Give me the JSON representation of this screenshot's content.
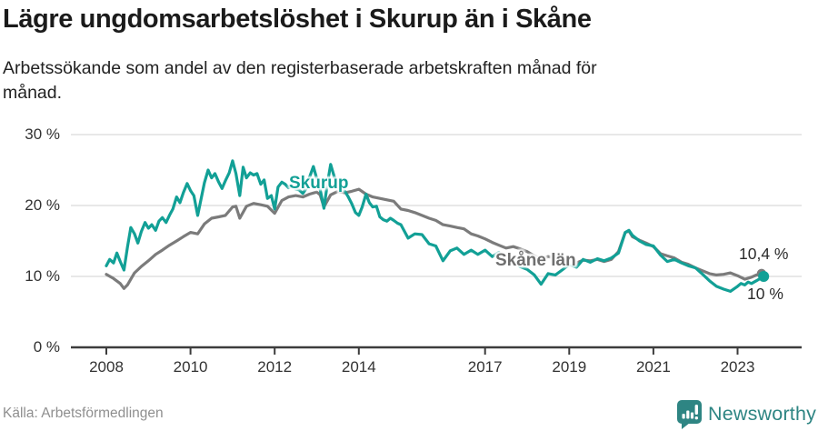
{
  "header": {
    "title": "Lägre ungdomsarbetslöshet i Skurup än i Skåne",
    "subtitle": "Arbetssökande som andel av den registerbaserade arbetskraften månad för månad.",
    "subtitle_lines": [
      "Arbetssökande som andel av den registerbaserade arbetskraften månad för",
      "månad."
    ]
  },
  "footer": {
    "source": "Källa: Arbetsförmedlingen",
    "brand": "Newsworthy"
  },
  "colors": {
    "skurup": "#12a096",
    "skane": "#7b7b7b",
    "grid": "#d9d9d9",
    "axis": "#3c3c3c",
    "annotation": "#2b2b2b",
    "logo_teal": "#2e8583"
  },
  "chart_data": {
    "type": "line",
    "title": "Lägre ungdomsarbetslöshet i Skurup än i Skåne",
    "xlabel": "",
    "ylabel": "Arbetssökande som andel av den registerbaserade arbetskraften",
    "x_ticks": [
      "2008",
      "2010",
      "2012",
      "2014",
      "2017",
      "2019",
      "2021",
      "2023"
    ],
    "x_tick_years": [
      2008,
      2010,
      2012,
      2014,
      2017,
      2019,
      2021,
      2023
    ],
    "y_ticks": [
      "0 %",
      "10 %",
      "20 %",
      "30 %"
    ],
    "y_tick_values": [
      0,
      10,
      20,
      30
    ],
    "ylim": [
      0,
      30
    ],
    "xlim": [
      2007.7,
      2023.9
    ],
    "grid": "horizontal",
    "legend_position": "inline-labels",
    "series": [
      {
        "name": "Skåne län",
        "color": "#7b7b7b",
        "end_label": "10,4 %",
        "end_value": 10.4,
        "points": [
          [
            2008.0,
            10.3
          ],
          [
            2008.17,
            9.7
          ],
          [
            2008.33,
            9.0
          ],
          [
            2008.42,
            8.3
          ],
          [
            2008.5,
            8.8
          ],
          [
            2008.58,
            9.6
          ],
          [
            2008.67,
            10.5
          ],
          [
            2008.83,
            11.4
          ],
          [
            2009.0,
            12.2
          ],
          [
            2009.17,
            13.1
          ],
          [
            2009.33,
            13.7
          ],
          [
            2009.5,
            14.4
          ],
          [
            2009.67,
            15.0
          ],
          [
            2009.83,
            15.6
          ],
          [
            2010.0,
            16.2
          ],
          [
            2010.17,
            16.0
          ],
          [
            2010.33,
            17.4
          ],
          [
            2010.5,
            18.2
          ],
          [
            2010.67,
            18.4
          ],
          [
            2010.83,
            18.6
          ],
          [
            2011.0,
            19.8
          ],
          [
            2011.08,
            19.9
          ],
          [
            2011.17,
            18.2
          ],
          [
            2011.33,
            19.9
          ],
          [
            2011.5,
            20.3
          ],
          [
            2011.67,
            20.1
          ],
          [
            2011.83,
            19.9
          ],
          [
            2012.0,
            18.9
          ],
          [
            2012.17,
            20.7
          ],
          [
            2012.33,
            21.2
          ],
          [
            2012.5,
            21.4
          ],
          [
            2012.67,
            21.2
          ],
          [
            2012.83,
            21.6
          ],
          [
            2013.0,
            21.9
          ],
          [
            2013.08,
            21.5
          ],
          [
            2013.17,
            19.8
          ],
          [
            2013.33,
            21.5
          ],
          [
            2013.5,
            22.0
          ],
          [
            2013.67,
            21.8
          ],
          [
            2013.83,
            22.0
          ],
          [
            2014.0,
            22.3
          ],
          [
            2014.17,
            21.6
          ],
          [
            2014.33,
            21.2
          ],
          [
            2014.5,
            21.0
          ],
          [
            2014.67,
            20.8
          ],
          [
            2014.83,
            20.6
          ],
          [
            2015.0,
            19.5
          ],
          [
            2015.17,
            19.3
          ],
          [
            2015.33,
            19.0
          ],
          [
            2015.5,
            18.6
          ],
          [
            2015.67,
            18.2
          ],
          [
            2015.83,
            17.9
          ],
          [
            2016.0,
            17.3
          ],
          [
            2016.17,
            17.1
          ],
          [
            2016.33,
            16.9
          ],
          [
            2016.5,
            16.7
          ],
          [
            2016.67,
            16.0
          ],
          [
            2016.83,
            15.7
          ],
          [
            2017.0,
            15.3
          ],
          [
            2017.17,
            14.8
          ],
          [
            2017.33,
            14.4
          ],
          [
            2017.5,
            14.0
          ],
          [
            2017.67,
            14.2
          ],
          [
            2017.83,
            13.9
          ],
          [
            2018.0,
            13.5
          ],
          [
            2018.17,
            12.9
          ],
          [
            2018.33,
            12.5
          ],
          [
            2018.5,
            12.8
          ],
          [
            2018.67,
            12.6
          ],
          [
            2018.83,
            12.4
          ],
          [
            2019.0,
            12.2
          ],
          [
            2019.17,
            11.9
          ],
          [
            2019.33,
            12.3
          ],
          [
            2019.5,
            12.2
          ],
          [
            2019.67,
            12.4
          ],
          [
            2019.83,
            12.1
          ],
          [
            2020.0,
            12.4
          ],
          [
            2020.17,
            13.5
          ],
          [
            2020.33,
            16.2
          ],
          [
            2020.42,
            16.4
          ],
          [
            2020.5,
            15.6
          ],
          [
            2020.67,
            15.1
          ],
          [
            2020.83,
            14.7
          ],
          [
            2021.0,
            14.2
          ],
          [
            2021.17,
            13.2
          ],
          [
            2021.33,
            12.9
          ],
          [
            2021.5,
            12.6
          ],
          [
            2021.67,
            12.0
          ],
          [
            2021.83,
            11.7
          ],
          [
            2022.0,
            11.2
          ],
          [
            2022.17,
            10.8
          ],
          [
            2022.33,
            10.4
          ],
          [
            2022.5,
            10.2
          ],
          [
            2022.67,
            10.3
          ],
          [
            2022.83,
            10.5
          ],
          [
            2023.0,
            10.1
          ],
          [
            2023.17,
            9.6
          ],
          [
            2023.33,
            9.9
          ],
          [
            2023.45,
            10.2
          ],
          [
            2023.57,
            10.4
          ]
        ]
      },
      {
        "name": "Skurup",
        "color": "#12a096",
        "end_label": "10 %",
        "end_value": 10.0,
        "points": [
          [
            2008.0,
            11.5
          ],
          [
            2008.08,
            12.4
          ],
          [
            2008.17,
            11.9
          ],
          [
            2008.25,
            13.3
          ],
          [
            2008.33,
            12.1
          ],
          [
            2008.42,
            10.9
          ],
          [
            2008.5,
            14.1
          ],
          [
            2008.58,
            16.9
          ],
          [
            2008.67,
            16.0
          ],
          [
            2008.75,
            14.7
          ],
          [
            2008.83,
            16.3
          ],
          [
            2008.92,
            17.6
          ],
          [
            2009.0,
            16.8
          ],
          [
            2009.08,
            17.3
          ],
          [
            2009.17,
            16.5
          ],
          [
            2009.25,
            17.8
          ],
          [
            2009.33,
            18.3
          ],
          [
            2009.42,
            17.6
          ],
          [
            2009.5,
            18.6
          ],
          [
            2009.58,
            19.5
          ],
          [
            2009.67,
            21.2
          ],
          [
            2009.75,
            20.4
          ],
          [
            2009.83,
            21.8
          ],
          [
            2009.92,
            23.1
          ],
          [
            2010.0,
            22.1
          ],
          [
            2010.08,
            21.4
          ],
          [
            2010.17,
            18.6
          ],
          [
            2010.25,
            20.9
          ],
          [
            2010.33,
            23.2
          ],
          [
            2010.42,
            25.0
          ],
          [
            2010.5,
            23.9
          ],
          [
            2010.58,
            24.5
          ],
          [
            2010.67,
            23.3
          ],
          [
            2010.75,
            22.4
          ],
          [
            2010.83,
            23.5
          ],
          [
            2010.92,
            24.6
          ],
          [
            2011.0,
            26.3
          ],
          [
            2011.08,
            24.5
          ],
          [
            2011.17,
            21.4
          ],
          [
            2011.25,
            25.4
          ],
          [
            2011.33,
            23.9
          ],
          [
            2011.42,
            24.6
          ],
          [
            2011.5,
            24.3
          ],
          [
            2011.58,
            24.5
          ],
          [
            2011.67,
            23.0
          ],
          [
            2011.75,
            23.6
          ],
          [
            2011.83,
            21.0
          ],
          [
            2011.92,
            21.4
          ],
          [
            2012.0,
            19.5
          ],
          [
            2012.08,
            22.6
          ],
          [
            2012.17,
            23.3
          ],
          [
            2012.25,
            23.0
          ],
          [
            2012.33,
            22.5
          ],
          [
            2012.42,
            22.8
          ],
          [
            2012.5,
            22.3
          ],
          [
            2012.58,
            22.2
          ],
          [
            2012.67,
            21.7
          ],
          [
            2012.75,
            22.4
          ],
          [
            2012.83,
            24.0
          ],
          [
            2012.92,
            25.5
          ],
          [
            2013.0,
            23.8
          ],
          [
            2013.08,
            22.3
          ],
          [
            2013.17,
            19.6
          ],
          [
            2013.25,
            23.0
          ],
          [
            2013.33,
            25.8
          ],
          [
            2013.42,
            24.0
          ],
          [
            2013.5,
            23.2
          ],
          [
            2013.58,
            22.5
          ],
          [
            2013.67,
            22.0
          ],
          [
            2013.75,
            21.2
          ],
          [
            2013.83,
            20.3
          ],
          [
            2013.92,
            19.0
          ],
          [
            2014.0,
            18.6
          ],
          [
            2014.08,
            19.8
          ],
          [
            2014.17,
            21.6
          ],
          [
            2014.25,
            20.4
          ],
          [
            2014.33,
            19.8
          ],
          [
            2014.42,
            19.9
          ],
          [
            2014.5,
            18.4
          ],
          [
            2014.58,
            18.0
          ],
          [
            2014.67,
            17.8
          ],
          [
            2014.75,
            18.2
          ],
          [
            2014.83,
            17.9
          ],
          [
            2014.92,
            17.5
          ],
          [
            2015.0,
            17.3
          ],
          [
            2015.17,
            15.4
          ],
          [
            2015.33,
            16.0
          ],
          [
            2015.5,
            15.9
          ],
          [
            2015.67,
            14.6
          ],
          [
            2015.83,
            14.3
          ],
          [
            2016.0,
            12.2
          ],
          [
            2016.17,
            13.6
          ],
          [
            2016.33,
            14.0
          ],
          [
            2016.5,
            13.1
          ],
          [
            2016.67,
            13.7
          ],
          [
            2016.83,
            13.1
          ],
          [
            2017.0,
            13.7
          ],
          [
            2017.17,
            12.8
          ],
          [
            2017.33,
            13.4
          ],
          [
            2017.5,
            11.8
          ],
          [
            2017.67,
            12.4
          ],
          [
            2017.83,
            11.4
          ],
          [
            2018.0,
            11.0
          ],
          [
            2018.17,
            10.2
          ],
          [
            2018.33,
            8.9
          ],
          [
            2018.5,
            10.4
          ],
          [
            2018.67,
            10.2
          ],
          [
            2018.83,
            10.9
          ],
          [
            2019.0,
            11.7
          ],
          [
            2019.17,
            11.3
          ],
          [
            2019.33,
            12.4
          ],
          [
            2019.5,
            12.0
          ],
          [
            2019.67,
            12.5
          ],
          [
            2019.83,
            12.2
          ],
          [
            2020.0,
            12.6
          ],
          [
            2020.17,
            13.3
          ],
          [
            2020.33,
            16.2
          ],
          [
            2020.42,
            16.5
          ],
          [
            2020.5,
            15.8
          ],
          [
            2020.67,
            15.0
          ],
          [
            2020.83,
            14.5
          ],
          [
            2021.0,
            14.3
          ],
          [
            2021.17,
            13.0
          ],
          [
            2021.33,
            12.1
          ],
          [
            2021.5,
            12.4
          ],
          [
            2021.67,
            11.9
          ],
          [
            2021.83,
            11.5
          ],
          [
            2022.0,
            11.2
          ],
          [
            2022.17,
            10.3
          ],
          [
            2022.33,
            9.4
          ],
          [
            2022.5,
            8.6
          ],
          [
            2022.67,
            8.2
          ],
          [
            2022.83,
            7.9
          ],
          [
            2023.0,
            8.6
          ],
          [
            2023.08,
            9.0
          ],
          [
            2023.17,
            8.8
          ],
          [
            2023.25,
            9.2
          ],
          [
            2023.33,
            9.0
          ],
          [
            2023.45,
            9.4
          ],
          [
            2023.62,
            10.0
          ]
        ]
      }
    ]
  }
}
